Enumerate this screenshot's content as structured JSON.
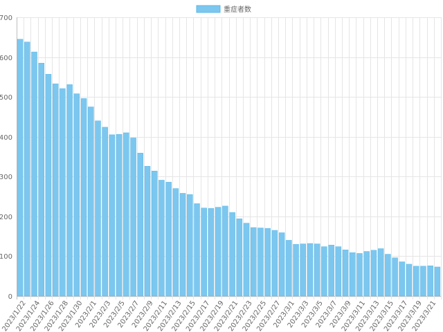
{
  "chart_data": {
    "type": "bar",
    "title": "",
    "xlabel": "",
    "ylabel": "",
    "ylim": [
      0,
      700
    ],
    "yticks": [
      0,
      100,
      200,
      300,
      400,
      500,
      600,
      700
    ],
    "grid": true,
    "legend_position": "top-center",
    "colors": {
      "bar": "#7cc7ef",
      "bar_border": "#5ab8ea"
    },
    "series": [
      {
        "name": "重症者数",
        "values": [
          645,
          638,
          613,
          585,
          557,
          533,
          521,
          531,
          508,
          496,
          475,
          440,
          424,
          405,
          406,
          410,
          397,
          359,
          326,
          314,
          291,
          286,
          270,
          258,
          255,
          232,
          221,
          220,
          223,
          226,
          210,
          194,
          183,
          172,
          171,
          170,
          165,
          159,
          140,
          130,
          131,
          132,
          131,
          124,
          128,
          124,
          116,
          109,
          107,
          112,
          115,
          119,
          105,
          96,
          86,
          80,
          75,
          75,
          76,
          73
        ]
      }
    ],
    "categories": [
      "2023/1/22",
      "2023/1/23",
      "2023/1/24",
      "2023/1/25",
      "2023/1/26",
      "2023/1/27",
      "2023/1/28",
      "2023/1/29",
      "2023/1/30",
      "2023/1/31",
      "2023/2/1",
      "2023/2/2",
      "2023/2/3",
      "2023/2/4",
      "2023/2/5",
      "2023/2/6",
      "2023/2/7",
      "2023/2/8",
      "2023/2/9",
      "2023/2/10",
      "2023/2/11",
      "2023/2/12",
      "2023/2/13",
      "2023/2/14",
      "2023/2/15",
      "2023/2/16",
      "2023/2/17",
      "2023/2/18",
      "2023/2/19",
      "2023/2/20",
      "2023/2/21",
      "2023/2/22",
      "2023/2/23",
      "2023/2/24",
      "2023/2/25",
      "2023/2/26",
      "2023/2/27",
      "2023/2/28",
      "2023/3/1",
      "2023/3/2",
      "2023/3/3",
      "2023/3/4",
      "2023/3/5",
      "2023/3/6",
      "2023/3/7",
      "2023/3/8",
      "2023/3/9",
      "2023/3/10",
      "2023/3/11",
      "2023/3/12",
      "2023/3/13",
      "2023/3/14",
      "2023/3/15",
      "2023/3/16",
      "2023/3/17",
      "2023/3/18",
      "2023/3/19",
      "2023/3/20",
      "2023/3/21",
      "2023/3/22"
    ],
    "x_tick_labels_shown": [
      "2023/1/22",
      "2023/1/24",
      "2023/1/26",
      "2023/1/28",
      "2023/1/30",
      "2023/2/1",
      "2023/2/3",
      "2023/2/5",
      "2023/2/7",
      "2023/2/9",
      "2023/2/11",
      "2023/2/13",
      "2023/2/15",
      "2023/2/17",
      "2023/2/19",
      "2023/2/21",
      "2023/2/23",
      "2023/2/25",
      "2023/2/27",
      "2023/3/1",
      "2023/3/3",
      "2023/3/5",
      "2023/3/7",
      "2023/3/9",
      "2023/3/11",
      "2023/3/13",
      "2023/3/15",
      "2023/3/17",
      "2023/3/19",
      "2023/3/21"
    ]
  }
}
